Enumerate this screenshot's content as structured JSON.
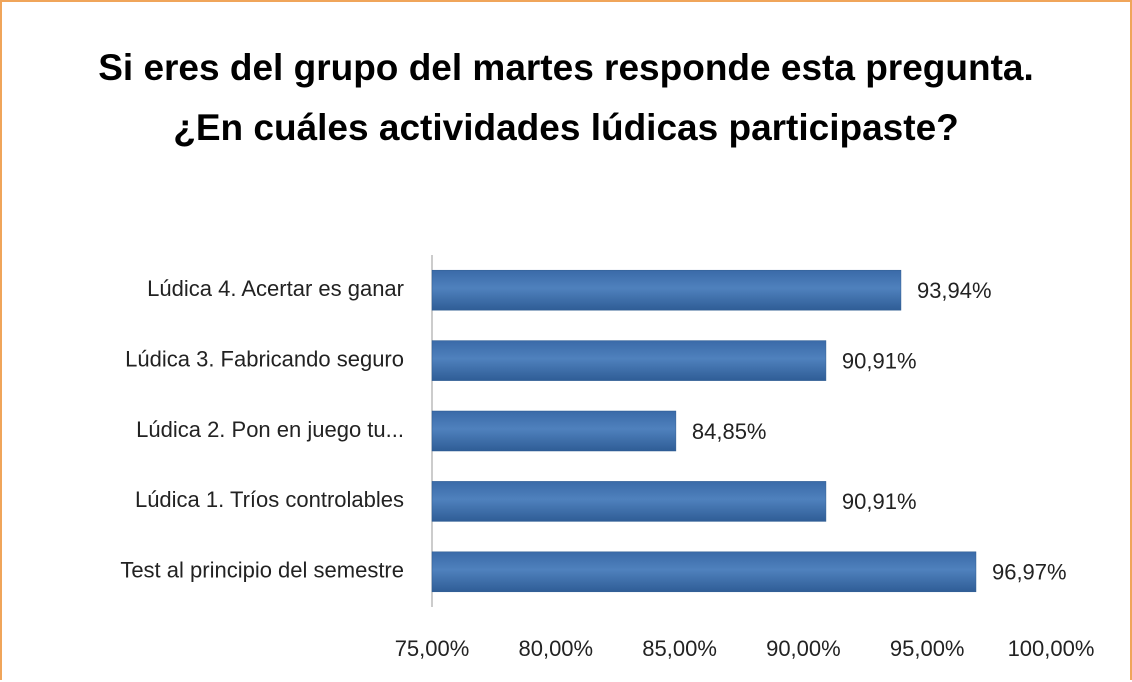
{
  "chart_data": {
    "type": "bar",
    "orientation": "horizontal",
    "title": "Si eres del grupo del martes responde esta pregunta. ¿En cuáles actividades lúdicas participaste?",
    "categories": [
      "Lúdica 4. Acertar es ganar",
      "Lúdica 3. Fabricando seguro",
      "Lúdica 2. Pon en juego tu...",
      "Lúdica 1. Tríos controlables",
      "Test al principio del semestre"
    ],
    "values": [
      93.94,
      90.91,
      84.85,
      90.91,
      96.97
    ],
    "value_labels": [
      "93,94%",
      "90,91%",
      "84,85%",
      "90,91%",
      "96,97%"
    ],
    "color": "#4f81bd",
    "xlim": [
      75,
      100
    ],
    "xticks": [
      {
        "value": 75,
        "label": "75,00%"
      },
      {
        "value": 80,
        "label": "80,00%"
      },
      {
        "value": 85,
        "label": "85,00%"
      },
      {
        "value": 90,
        "label": "90,00%"
      },
      {
        "value": 95,
        "label": "95,00%"
      },
      {
        "value": 100,
        "label": "100,00%"
      }
    ],
    "grid": false
  }
}
